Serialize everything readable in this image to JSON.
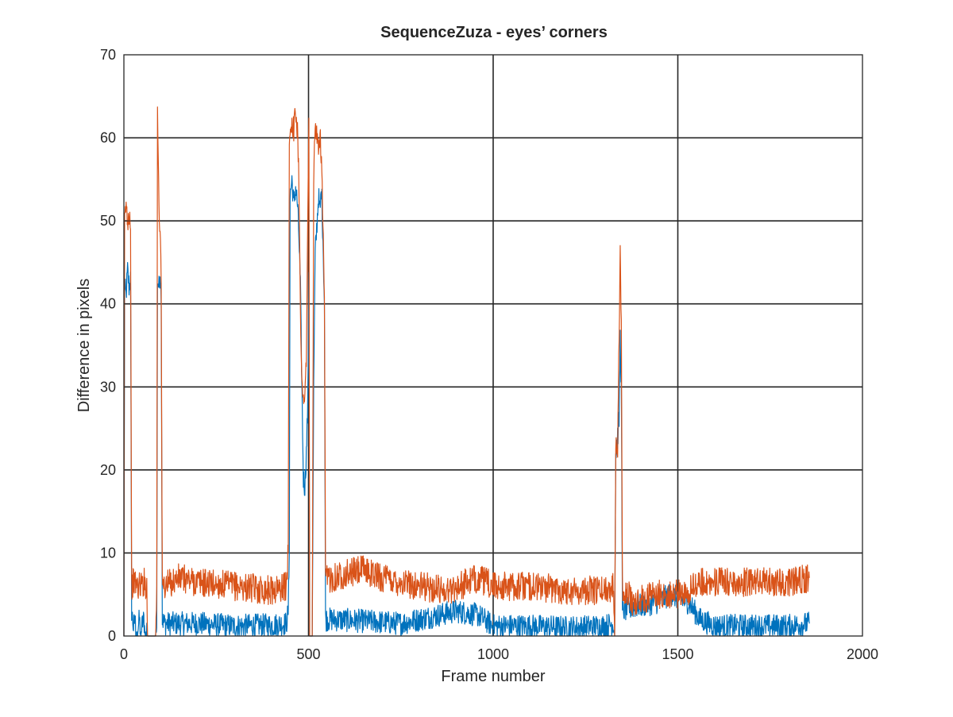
{
  "chart_data": {
    "type": "line",
    "title": "SequenceZuza - eyes’ corners",
    "xlabel": "Frame number",
    "ylabel": "Difference in pixels",
    "xlim": [
      0,
      2000
    ],
    "ylim": [
      0,
      70
    ],
    "xticks": [
      0,
      500,
      1000,
      1500,
      2000
    ],
    "yticks": [
      0,
      10,
      20,
      30,
      40,
      50,
      60,
      70
    ],
    "grid": true,
    "series": [
      {
        "color": "#0072BD",
        "base_level": 1.5,
        "noise": 1.8,
        "segments": [
          [
            0,
            0
          ],
          [
            2,
            42
          ],
          [
            6,
            41
          ],
          [
            10,
            44
          ],
          [
            14,
            42
          ],
          [
            18,
            43
          ],
          [
            21,
            3
          ],
          [
            26,
            1
          ],
          [
            30,
            2
          ],
          [
            34,
            0
          ],
          [
            38,
            1
          ],
          [
            42,
            2
          ],
          [
            46,
            0
          ],
          [
            50,
            1.5
          ],
          [
            54,
            2
          ],
          [
            58,
            0
          ],
          [
            62,
            1
          ],
          [
            64,
            0
          ],
          [
            70,
            0
          ],
          [
            85,
            0
          ],
          [
            89,
            1
          ],
          [
            91,
            43
          ],
          [
            95,
            42
          ],
          [
            98,
            44
          ],
          [
            101,
            41
          ],
          [
            104,
            2
          ],
          [
            110,
            1.5
          ],
          [
            200,
            1.5
          ],
          [
            300,
            1.2
          ],
          [
            400,
            1.3
          ],
          [
            440,
            1.5
          ],
          [
            445,
            3
          ],
          [
            448,
            10
          ],
          [
            450,
            53
          ],
          [
            455,
            55
          ],
          [
            460,
            52
          ],
          [
            465,
            54
          ],
          [
            470,
            52
          ],
          [
            474,
            48
          ],
          [
            478,
            42
          ],
          [
            482,
            30
          ],
          [
            486,
            19
          ],
          [
            490,
            18
          ],
          [
            494,
            22
          ],
          [
            498,
            28
          ],
          [
            501,
            44
          ],
          [
            503,
            0
          ],
          [
            510,
            0
          ],
          [
            514,
            30
          ],
          [
            518,
            46
          ],
          [
            522,
            49
          ],
          [
            527,
            53
          ],
          [
            531,
            51
          ],
          [
            535,
            54
          ],
          [
            539,
            48
          ],
          [
            543,
            40
          ],
          [
            546,
            2
          ],
          [
            560,
            2
          ],
          [
            650,
            1.8
          ],
          [
            750,
            1.5
          ],
          [
            900,
            3
          ],
          [
            960,
            2.5
          ],
          [
            1000,
            1.2
          ],
          [
            1100,
            1.2
          ],
          [
            1200,
            1.0
          ],
          [
            1300,
            1.2
          ],
          [
            1326,
            1.5
          ],
          [
            1329,
            0
          ],
          [
            1332,
            22
          ],
          [
            1337,
            24
          ],
          [
            1341,
            26
          ],
          [
            1344,
            36
          ],
          [
            1347,
            30
          ],
          [
            1350,
            3
          ],
          [
            1380,
            3.5
          ],
          [
            1440,
            4
          ],
          [
            1480,
            5
          ],
          [
            1530,
            4
          ],
          [
            1560,
            2
          ],
          [
            1600,
            1.2
          ],
          [
            1700,
            1.2
          ],
          [
            1800,
            1.2
          ],
          [
            1856,
            1.5
          ]
        ]
      },
      {
        "color": "#D95319",
        "base_level": 6,
        "noise": 2.2,
        "segments": [
          [
            0,
            0
          ],
          [
            2,
            50
          ],
          [
            6,
            52
          ],
          [
            10,
            50
          ],
          [
            14,
            51
          ],
          [
            18,
            50
          ],
          [
            21,
            6
          ],
          [
            26,
            6.5
          ],
          [
            40,
            6
          ],
          [
            55,
            6.5
          ],
          [
            62,
            6
          ],
          [
            64,
            0
          ],
          [
            70,
            0
          ],
          [
            86,
            0
          ],
          [
            89,
            6
          ],
          [
            91,
            63
          ],
          [
            93,
            58
          ],
          [
            96,
            50
          ],
          [
            99,
            49
          ],
          [
            101,
            42
          ],
          [
            104,
            6
          ],
          [
            110,
            6
          ],
          [
            150,
            7
          ],
          [
            200,
            6.5
          ],
          [
            300,
            6
          ],
          [
            400,
            5.5
          ],
          [
            440,
            6
          ],
          [
            445,
            10
          ],
          [
            448,
            60
          ],
          [
            455,
            62
          ],
          [
            460,
            61
          ],
          [
            465,
            63
          ],
          [
            470,
            61
          ],
          [
            474,
            55
          ],
          [
            478,
            40
          ],
          [
            482,
            30
          ],
          [
            486,
            28
          ],
          [
            490,
            30
          ],
          [
            494,
            33
          ],
          [
            498,
            50
          ],
          [
            501,
            62
          ],
          [
            503,
            0
          ],
          [
            510,
            0
          ],
          [
            514,
            55
          ],
          [
            518,
            62
          ],
          [
            522,
            60
          ],
          [
            527,
            58
          ],
          [
            531,
            61
          ],
          [
            535,
            57
          ],
          [
            539,
            50
          ],
          [
            543,
            40
          ],
          [
            546,
            7
          ],
          [
            560,
            7
          ],
          [
            600,
            7.5
          ],
          [
            650,
            8
          ],
          [
            700,
            7
          ],
          [
            800,
            6
          ],
          [
            880,
            5.5
          ],
          [
            960,
            7
          ],
          [
            1000,
            6
          ],
          [
            1100,
            6
          ],
          [
            1200,
            5.5
          ],
          [
            1300,
            5.5
          ],
          [
            1326,
            6
          ],
          [
            1329,
            0
          ],
          [
            1332,
            24
          ],
          [
            1337,
            23
          ],
          [
            1341,
            36
          ],
          [
            1344,
            46
          ],
          [
            1347,
            38
          ],
          [
            1350,
            6
          ],
          [
            1380,
            4
          ],
          [
            1440,
            5
          ],
          [
            1500,
            5
          ],
          [
            1530,
            5.5
          ],
          [
            1560,
            6.5
          ],
          [
            1600,
            6.5
          ],
          [
            1700,
            6.5
          ],
          [
            1800,
            6.5
          ],
          [
            1856,
            7
          ]
        ]
      }
    ]
  }
}
